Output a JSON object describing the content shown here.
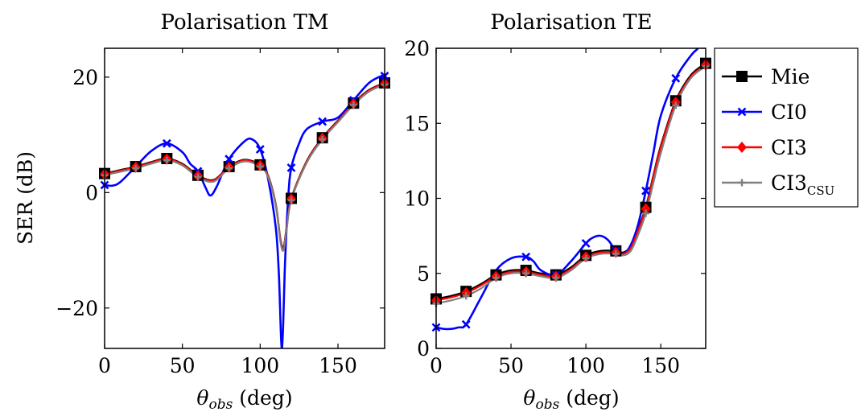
{
  "shared": {
    "xlabel_symbol": "θ",
    "xlabel_sub": "obs",
    "xlabel_unit": " (deg)",
    "ylabel": "SER (dB)"
  },
  "legend": {
    "placement": "right",
    "entries": [
      {
        "label": "Mie",
        "sub": "",
        "color": "#000000",
        "marker": "square"
      },
      {
        "label": "CI0",
        "sub": "",
        "color": "#0000ff",
        "marker": "cross"
      },
      {
        "label": "CI3",
        "sub": "",
        "color": "#ff0000",
        "marker": "diamond"
      },
      {
        "label": "CI3",
        "sub": "CSU",
        "color": "#808080",
        "marker": "plus"
      }
    ]
  },
  "chart_data": [
    {
      "type": "line",
      "title": "Polarisation TM",
      "xlabel": "θobs (deg)",
      "ylabel": "SER (dB)",
      "xlim": [
        0,
        180
      ],
      "ylim": [
        -27,
        25
      ],
      "xticks": [
        0,
        50,
        100,
        150
      ],
      "yticks": [
        -20,
        0,
        20
      ],
      "grid": false,
      "series": [
        {
          "name": "Mie",
          "color": "#000000",
          "marker": "square",
          "x": [
            0,
            10,
            20,
            30,
            40,
            50,
            60,
            70,
            80,
            90,
            100,
            105,
            110,
            113,
            115,
            117,
            120,
            130,
            140,
            150,
            160,
            170,
            180
          ],
          "y": [
            3.3,
            3.9,
            4.5,
            5.3,
            5.9,
            5.0,
            3.0,
            2.2,
            4.5,
            5.7,
            4.8,
            3.0,
            -2.0,
            -8.0,
            -9.5,
            -6.0,
            -1.0,
            5.5,
            9.5,
            12.5,
            15.5,
            17.8,
            19.0
          ],
          "marker_x": [
            0,
            20,
            40,
            60,
            80,
            100,
            120,
            140,
            160,
            180
          ],
          "marker_y": [
            3.3,
            4.5,
            5.9,
            3.0,
            4.5,
            4.8,
            -1.0,
            9.5,
            15.5,
            19.0
          ]
        },
        {
          "name": "CI0",
          "color": "#0000ff",
          "marker": "cross",
          "x": [
            0,
            5,
            10,
            20,
            30,
            40,
            50,
            55,
            60,
            65,
            68,
            72,
            80,
            90,
            95,
            100,
            105,
            110,
            112,
            114,
            116,
            118,
            120,
            125,
            130,
            140,
            150,
            160,
            170,
            178,
            180
          ],
          "y": [
            1.3,
            1.2,
            1.8,
            4.5,
            7.2,
            8.5,
            7.0,
            5.0,
            3.7,
            0.8,
            -0.5,
            1.0,
            5.8,
            8.9,
            9.2,
            7.5,
            2.5,
            -6.0,
            -14.0,
            -27.0,
            -12.0,
            -1.0,
            4.3,
            8.5,
            11.0,
            12.3,
            13.0,
            16.0,
            19.0,
            20.2,
            20.2
          ],
          "marker_x": [
            0,
            40,
            60,
            80,
            100,
            120,
            140,
            160,
            180
          ],
          "marker_y": [
            1.3,
            8.5,
            3.7,
            5.8,
            7.5,
            4.3,
            12.3,
            16.0,
            20.2
          ]
        },
        {
          "name": "CI3",
          "color": "#ff0000",
          "marker": "diamond",
          "x": [
            0,
            10,
            20,
            30,
            40,
            50,
            60,
            70,
            80,
            90,
            100,
            105,
            110,
            113,
            115,
            117,
            120,
            130,
            140,
            150,
            160,
            170,
            180
          ],
          "y": [
            3.2,
            3.8,
            4.4,
            5.2,
            5.8,
            4.9,
            2.9,
            2.1,
            4.4,
            5.6,
            4.7,
            2.9,
            -2.1,
            -8.2,
            -9.7,
            -6.2,
            -1.1,
            5.4,
            9.4,
            12.4,
            15.4,
            17.7,
            18.9
          ],
          "marker_x": [
            0,
            20,
            40,
            60,
            80,
            100,
            120,
            140,
            160,
            180
          ],
          "marker_y": [
            3.2,
            4.4,
            5.8,
            2.9,
            4.4,
            4.7,
            -1.1,
            9.4,
            15.4,
            18.9
          ]
        },
        {
          "name": "CI3CSU",
          "color": "#808080",
          "marker": "plus",
          "x": [
            0,
            10,
            20,
            30,
            40,
            50,
            60,
            70,
            80,
            90,
            100,
            105,
            110,
            113,
            115,
            117,
            120,
            130,
            140,
            150,
            160,
            170,
            180
          ],
          "y": [
            3.0,
            3.6,
            4.2,
            5.0,
            5.6,
            4.7,
            2.7,
            1.9,
            4.2,
            5.4,
            4.5,
            2.7,
            -2.3,
            -8.5,
            -10.0,
            -6.5,
            -1.3,
            5.2,
            9.2,
            12.2,
            15.2,
            17.5,
            18.7
          ],
          "marker_x": [
            0,
            20,
            40,
            60,
            80,
            100,
            120,
            140,
            160,
            180
          ],
          "marker_y": [
            3.0,
            4.2,
            5.6,
            2.7,
            4.2,
            4.5,
            -1.3,
            9.2,
            15.2,
            18.7
          ]
        }
      ]
    },
    {
      "type": "line",
      "title": "Polarisation TE",
      "xlabel": "θobs (deg)",
      "ylabel": "",
      "xlim": [
        0,
        180
      ],
      "ylim": [
        0,
        20
      ],
      "xticks": [
        0,
        50,
        100,
        150
      ],
      "yticks": [
        0,
        5,
        10,
        15,
        20
      ],
      "grid": false,
      "series": [
        {
          "name": "Mie",
          "color": "#000000",
          "marker": "square",
          "x": [
            0,
            10,
            20,
            30,
            40,
            50,
            60,
            70,
            80,
            90,
            100,
            110,
            120,
            125,
            130,
            135,
            140,
            145,
            150,
            160,
            170,
            180
          ],
          "y": [
            3.3,
            3.5,
            3.8,
            4.3,
            4.9,
            5.2,
            5.2,
            5.0,
            4.9,
            5.4,
            6.2,
            6.5,
            6.5,
            6.4,
            6.8,
            8.0,
            9.4,
            11.5,
            13.5,
            16.5,
            18.2,
            19.0
          ],
          "marker_x": [
            0,
            20,
            40,
            60,
            80,
            100,
            120,
            140,
            160,
            180
          ],
          "marker_y": [
            3.3,
            3.8,
            4.9,
            5.2,
            4.9,
            6.2,
            6.5,
            9.4,
            16.5,
            19.0
          ]
        },
        {
          "name": "CI0",
          "color": "#0000ff",
          "marker": "cross",
          "x": [
            0,
            5,
            10,
            15,
            20,
            30,
            40,
            50,
            60,
            65,
            70,
            80,
            90,
            100,
            105,
            110,
            115,
            120,
            125,
            130,
            135,
            140,
            145,
            150,
            160,
            170,
            175
          ],
          "y": [
            1.4,
            1.3,
            1.3,
            1.4,
            1.6,
            3.4,
            5.2,
            6.0,
            6.1,
            5.8,
            5.2,
            4.9,
            5.8,
            7.0,
            7.4,
            7.5,
            7.2,
            6.5,
            6.3,
            6.9,
            8.3,
            10.5,
            13.0,
            15.5,
            18.0,
            19.5,
            20.0
          ],
          "marker_x": [
            0,
            20,
            60,
            80,
            100,
            120,
            140,
            160
          ],
          "marker_y": [
            1.4,
            1.6,
            6.1,
            4.9,
            7.0,
            6.5,
            10.5,
            18.0
          ]
        },
        {
          "name": "CI3",
          "color": "#ff0000",
          "marker": "diamond",
          "x": [
            0,
            10,
            20,
            30,
            40,
            50,
            60,
            70,
            80,
            90,
            100,
            110,
            120,
            125,
            130,
            135,
            140,
            145,
            150,
            160,
            170,
            180
          ],
          "y": [
            3.2,
            3.4,
            3.7,
            4.2,
            4.8,
            5.1,
            5.1,
            4.9,
            4.8,
            5.3,
            6.1,
            6.4,
            6.4,
            6.3,
            6.7,
            7.9,
            9.3,
            11.4,
            13.4,
            16.4,
            18.1,
            18.9
          ],
          "marker_x": [
            0,
            20,
            40,
            60,
            80,
            100,
            120,
            140,
            160,
            180
          ],
          "marker_y": [
            3.2,
            3.7,
            4.8,
            5.1,
            4.8,
            6.1,
            6.4,
            9.3,
            16.4,
            18.9
          ]
        },
        {
          "name": "CI3CSU",
          "color": "#808080",
          "marker": "plus",
          "x": [
            0,
            10,
            20,
            30,
            40,
            50,
            60,
            70,
            80,
            90,
            100,
            110,
            120,
            125,
            130,
            135,
            140,
            145,
            150,
            160,
            170,
            180
          ],
          "y": [
            3.0,
            3.2,
            3.5,
            4.0,
            4.7,
            5.0,
            5.0,
            4.8,
            4.7,
            5.2,
            6.0,
            6.3,
            6.3,
            6.2,
            6.5,
            7.6,
            9.0,
            11.0,
            13.0,
            16.2,
            18.0,
            18.8
          ],
          "marker_x": [
            0,
            20,
            40,
            60,
            80,
            100,
            120,
            140,
            160,
            180
          ],
          "marker_y": [
            3.0,
            3.5,
            4.7,
            5.0,
            4.7,
            6.0,
            6.3,
            9.0,
            16.2,
            18.8
          ]
        }
      ]
    }
  ]
}
